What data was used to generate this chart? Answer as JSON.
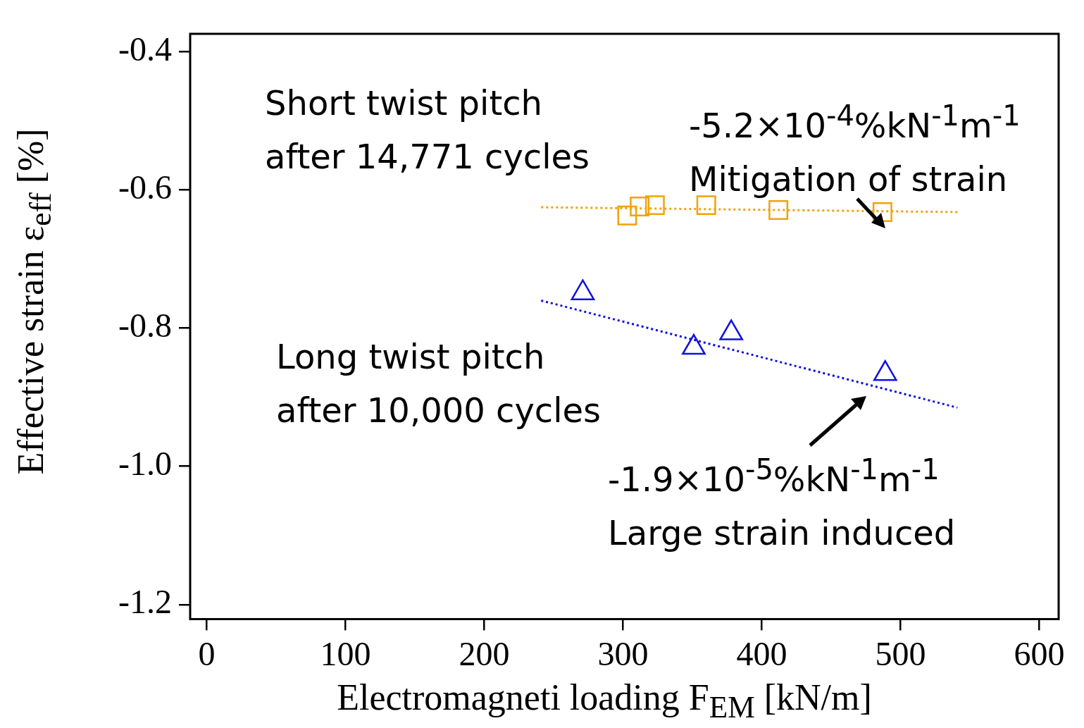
{
  "chart_data": {
    "type": "scatter",
    "xlabel": "Electromagneti loading F$_{EM}$ [kN/m]",
    "ylabel": "Effective strain ε$_{eff}$ [%]",
    "xlim": [
      -12,
      614
    ],
    "xticks": [
      0,
      100,
      200,
      300,
      400,
      500,
      600
    ],
    "ylim": [
      -1.221,
      -0.374
    ],
    "yticks": [
      {
        "value": -1.2,
        "label": "-1.2"
      },
      {
        "value": -1,
        "label": "-1.0"
      },
      {
        "value": -0.8,
        "label": "-0.8"
      },
      {
        "value": -0.6,
        "label": "-0.6"
      },
      {
        "value": -0.4,
        "label": "-0.4"
      }
    ],
    "grid": false,
    "legend": false,
    "series": [
      {
        "type": "scatter",
        "color": "#f0a30a",
        "marker": "square",
        "x": [
          303,
          312,
          323,
          360,
          412,
          487
        ],
        "values": [
          -0.637,
          -0.624,
          -0.622,
          -0.622,
          -0.629,
          -0.632
        ]
      },
      {
        "type": "scatter",
        "color": "#1010e0",
        "marker": "triangle",
        "x": [
          271,
          351,
          378,
          489
        ],
        "values": [
          -0.749,
          -0.828,
          -0.807,
          -0.866
        ]
      },
      {
        "type": "line",
        "color": "#f0a30a",
        "marker": "none",
        "line_style": "dotted",
        "x": [
          241,
          541
        ],
        "values": [
          -0.625,
          -0.632
        ]
      },
      {
        "type": "line",
        "color": "#1010e0",
        "marker": "none",
        "line_style": "dotted",
        "x": [
          241,
          541
        ],
        "values": [
          -0.76,
          -0.915
        ]
      }
    ],
    "annotations": [
      "Short twist pitch\nafter 14,771 cycles",
      "-5.2×10$^{-4}$%kN$^{-1}$m$^{-1}$\nMitigation of strain",
      "Long twist pitch\nafter 10,000 cycles",
      "-1.9×10$^{-5}$%kN$^{-1}$m$^{-1}$\nLarge strain induced"
    ]
  }
}
